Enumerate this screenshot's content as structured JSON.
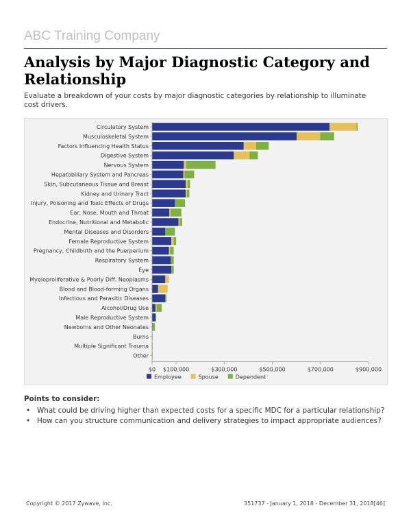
{
  "header": {
    "company": "ABC Training Company",
    "title": "Analysis by Major Diagnostic Category and Relationship",
    "subtitle": "Evaluate a breakdown of your costs by major diagnostic categories by relationship to illuminate cost drivers."
  },
  "colors": {
    "employee": "#2b3a8c",
    "spouse": "#e6c05a",
    "dependent": "#7fb043",
    "axis": "#999999",
    "text": "#333333"
  },
  "chart_data": {
    "type": "bar",
    "orientation": "horizontal",
    "stacked": true,
    "categories": [
      "Circulatory System",
      "Musculoskeletal System",
      "Factors Influencing Health Status",
      "Digestive System",
      "Nervous System",
      "Hepatobiliary System and Pancreas",
      "Skin, Subcutaneous Tissue and Breast",
      "Kidney and Urinary Tract",
      "Injury, Poisoning and Toxic Effects of Drugs",
      "Ear, Nose, Mouth and Throat",
      "Endocrine, Nutritional and Metabolic",
      "Mental Diseases and Disorders",
      "Female Reproductive System",
      "Pregnancy, Childbirth and the Puerperium",
      "Respiratory System",
      "Eye",
      "Myeloproliferative & Poorly Diff. Neoplasms",
      "Blood and Blood-forming Organs",
      "Infectious and Parasitic Diseases",
      "Alcohol/Drug Use",
      "Male Reproductive System",
      "Newborns and Other Neonates",
      "Burns",
      "Multiple Significant Trauma",
      "Other"
    ],
    "series": [
      {
        "name": "Employee",
        "values": [
          738000,
          601000,
          381000,
          340000,
          132000,
          130000,
          140000,
          140000,
          95000,
          72000,
          110000,
          55000,
          80000,
          70000,
          78000,
          80000,
          55000,
          25000,
          55000,
          14000,
          14000,
          2000,
          0,
          0,
          0
        ]
      },
      {
        "name": "Spouse",
        "values": [
          112000,
          98000,
          52000,
          65000,
          10000,
          5000,
          8000,
          5000,
          0,
          5000,
          5000,
          0,
          10000,
          5000,
          0,
          0,
          15000,
          40000,
          0,
          5000,
          0,
          0,
          0,
          0,
          0
        ]
      },
      {
        "name": "Dependent",
        "values": [
          5000,
          58000,
          52000,
          35000,
          122000,
          40000,
          10000,
          10000,
          42000,
          45000,
          10000,
          40000,
          10000,
          15000,
          12000,
          10000,
          0,
          0,
          5000,
          21000,
          3000,
          10000,
          2000,
          1000,
          1000
        ]
      }
    ],
    "xlim": [
      0,
      900000
    ],
    "tick_values": [
      0,
      100000,
      300000,
      500000,
      700000,
      900000
    ],
    "tick_labels": [
      "$0",
      "$100,000",
      "$300,000",
      "$500,000",
      "$700,000",
      "$900,000"
    ],
    "legend": [
      "Employee",
      "Spouse",
      "Dependent"
    ],
    "legend_position": "bottom-left",
    "xlabel": "",
    "ylabel": ""
  },
  "points": {
    "heading": "Points to consider:",
    "items": [
      "What could be driving higher than expected costs for a specific MDC for a particular relationship?",
      "How can you structure communication and delivery strategies to impact appropriate audiences?"
    ]
  },
  "footer": {
    "copyright": "Copyright © 2017 Zywave, Inc.",
    "meta": "351737 - January 1, 2018 - December 31, 2018[46]"
  }
}
